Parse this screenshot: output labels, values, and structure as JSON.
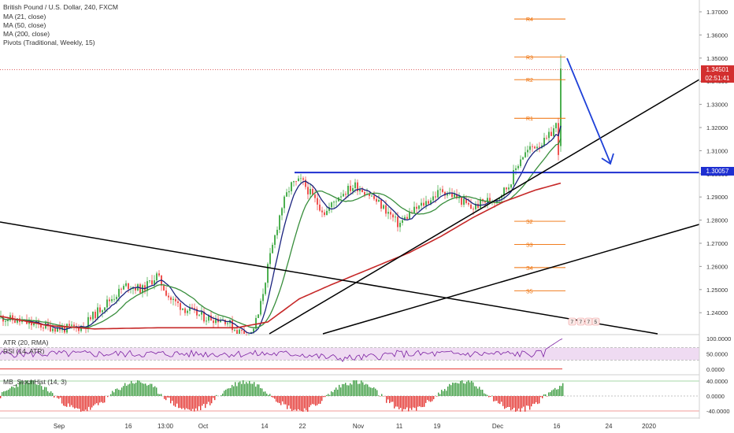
{
  "legend": {
    "symbol": "British Pound / U.S. Dollar, 240, FXCM",
    "ma21": "MA (21, close)",
    "ma50": "MA (50, close)",
    "ma200": "MA (200, close)",
    "pivots": "Pivots (Traditional, Weekly, 15)"
  },
  "tags": {
    "last_price": "1.34501",
    "countdown": "02:51:41",
    "support_level": "1.30057"
  },
  "colors": {
    "up": "#4caf50",
    "down": "#ef5350",
    "ma21": "#1a237e",
    "ma50": "#388e3c",
    "ma200": "#c62828",
    "pivot_line": "#ef6c00",
    "trend_line": "#000000",
    "support_line": "#1e2fd1",
    "arrow": "#1e40d8",
    "last_price": "#d32f2f",
    "rsi_band": "#e1bee7",
    "rsi_line": "#7b1fa2"
  },
  "chart_data": [
    {
      "type": "candlestick",
      "title": "British Pound / U.S. Dollar, 240, FXCM",
      "y_ticks": [
        "1.37000",
        "1.36000",
        "1.35000",
        "1.34000",
        "1.33000",
        "1.32000",
        "1.31000",
        "1.30000",
        "1.29000",
        "1.28000",
        "1.27000",
        "1.26000",
        "1.25000",
        "1.24000"
      ],
      "ylim": [
        1.2345,
        1.3745
      ],
      "x_ticks": [
        "Sep",
        "16",
        "13:00",
        "Oct",
        "14",
        "22",
        "Nov",
        "11",
        "19",
        "Dec",
        "16",
        "24",
        "2020"
      ],
      "last_price": 1.34501,
      "support_level": 1.30057,
      "pivots": [
        {
          "label": "R4",
          "value": 1.3669
        },
        {
          "label": "R3",
          "value": 1.3505
        },
        {
          "label": "R2",
          "value": 1.3407
        },
        {
          "label": "R1",
          "value": 1.324
        },
        {
          "label": "S2",
          "value": 1.2795
        },
        {
          "label": "S3",
          "value": 1.2695
        },
        {
          "label": "S4",
          "value": 1.2595
        },
        {
          "label": "S5",
          "value": 1.2495
        }
      ],
      "series": [
        {
          "name": "MA (21, close)"
        },
        {
          "name": "MA (50, close)"
        },
        {
          "name": "MA (200, close)"
        }
      ],
      "annotation": "downward arrow from 1.350 toward 1.300",
      "event_labels": [
        "7",
        "7",
        "7",
        "5"
      ]
    },
    {
      "type": "line",
      "title": "ATR (20, RMA)",
      "subtitle": "RSI (14, ATR)",
      "y_ticks": [
        "100.0000",
        "50.0000",
        "0.0000"
      ],
      "band": [
        30,
        70
      ]
    },
    {
      "type": "histogram",
      "title": "MB_StochHist (14, 3)",
      "y_ticks": [
        "40.0000",
        "0.0000",
        "-40.0000"
      ]
    }
  ]
}
